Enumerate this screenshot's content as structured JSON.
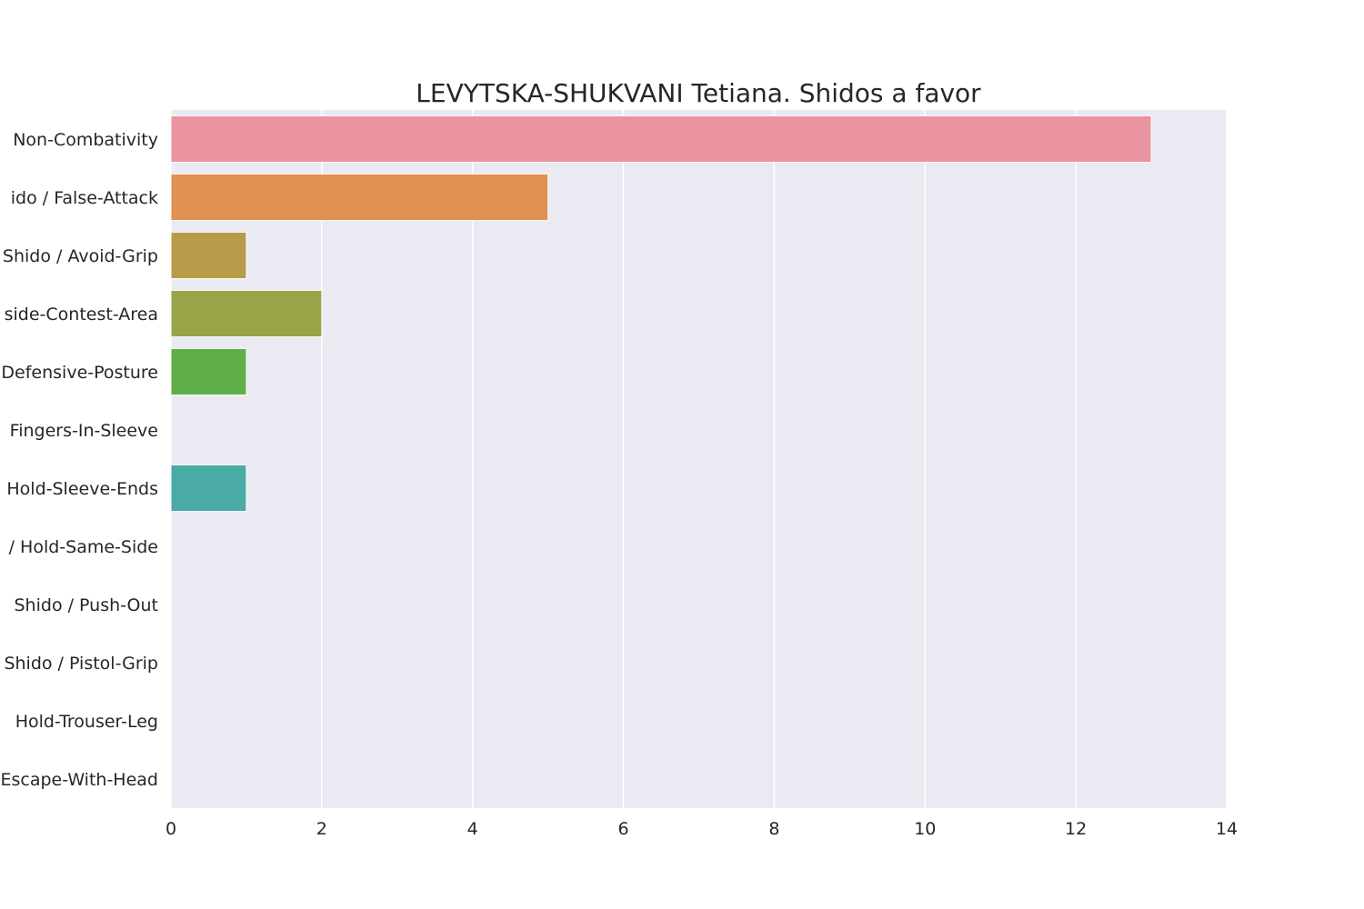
{
  "chart_data": {
    "type": "bar",
    "orientation": "horizontal",
    "title": "LEVYTSKA-SHUKVANI Tetiana. Shidos a favor",
    "xlabel": "",
    "ylabel": "",
    "xlim": [
      0,
      14
    ],
    "x_ticks": [
      0,
      2,
      4,
      6,
      8,
      10,
      12,
      14
    ],
    "grid": true,
    "categories": [
      "Non-Combativity",
      "ido / False-Attack",
      "Shido / Avoid-Grip",
      "side-Contest-Area",
      "Defensive-Posture",
      "Fingers-In-Sleeve",
      "Hold-Sleeve-Ends",
      "/ Hold-Same-Side",
      "Shido / Push-Out",
      "Shido / Pistol-Grip",
      "Hold-Trouser-Leg",
      "Escape-With-Head"
    ],
    "values": [
      13,
      5,
      1,
      2,
      1,
      0,
      1,
      0,
      0,
      0,
      0,
      0
    ],
    "colors": [
      "#e9949f",
      "#e09050",
      "#b89b48",
      "#98a446",
      "#60ae47",
      "#50ad8a",
      "#4aaba6",
      "#4ba8c8",
      "#7fa3e6",
      "#b59be6",
      "#e68fd9",
      "#eb92bd"
    ],
    "background_color": "#eaeaf2",
    "grid_color": "#ffffff"
  }
}
